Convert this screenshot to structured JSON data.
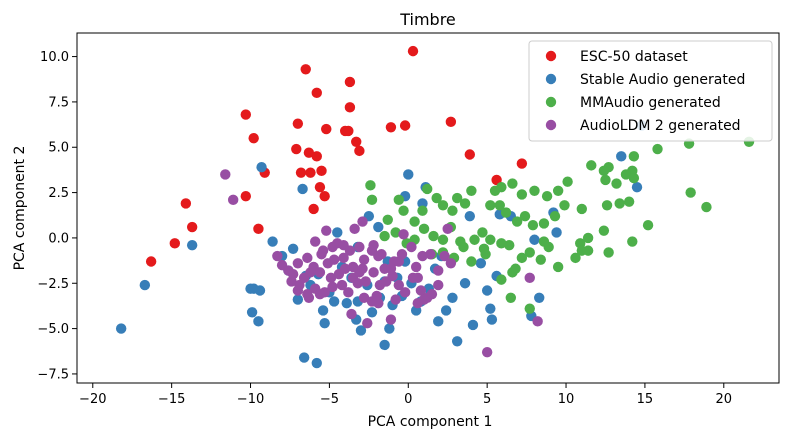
{
  "chart_data": {
    "type": "scatter",
    "title": "Timbre",
    "xlabel": "PCA component 1",
    "ylabel": "PCA component 2",
    "xlim": [
      -21,
      23.5
    ],
    "ylim": [
      -8,
      11.3
    ],
    "xticks": [
      -20,
      -15,
      -10,
      -5,
      0,
      5,
      10,
      15,
      20
    ],
    "yticks": [
      -7.5,
      -5.0,
      -2.5,
      0.0,
      2.5,
      5.0,
      7.5,
      10.0
    ],
    "ytick_labels": [
      "−7.5",
      "−5.0",
      "−2.5",
      "0.0",
      "2.5",
      "5.0",
      "7.5",
      "10.0"
    ],
    "xtick_labels": [
      "−20",
      "−15",
      "−10",
      "−5",
      "0",
      "5",
      "10",
      "15",
      "20"
    ],
    "grid": false,
    "legend_position": "top-right",
    "series": [
      {
        "name": "ESC-50 dataset",
        "color": "#e41a1c",
        "points": [
          [
            0.3,
            10.3
          ],
          [
            -6.5,
            9.3
          ],
          [
            -3.7,
            8.6
          ],
          [
            -5.8,
            8.0
          ],
          [
            -3.7,
            7.2
          ],
          [
            -10.3,
            6.8
          ],
          [
            -7.0,
            6.3
          ],
          [
            -5.2,
            6.0
          ],
          [
            -3.8,
            5.9
          ],
          [
            -3.3,
            5.3
          ],
          [
            -4.0,
            5.9
          ],
          [
            2.7,
            6.4
          ],
          [
            -1.1,
            6.1
          ],
          [
            -0.2,
            6.2
          ],
          [
            -9.8,
            5.5
          ],
          [
            -7.1,
            4.9
          ],
          [
            -6.3,
            4.7
          ],
          [
            -5.8,
            4.5
          ],
          [
            -3.1,
            4.8
          ],
          [
            -5.5,
            3.7
          ],
          [
            -6.8,
            3.6
          ],
          [
            -6.2,
            3.6
          ],
          [
            3.9,
            4.6
          ],
          [
            7.2,
            4.1
          ],
          [
            -5.6,
            2.8
          ],
          [
            -5.3,
            2.3
          ],
          [
            -10.3,
            2.3
          ],
          [
            -9.1,
            3.6
          ],
          [
            -6.0,
            1.6
          ],
          [
            -14.1,
            1.9
          ],
          [
            -13.7,
            0.6
          ],
          [
            -9.5,
            0.5
          ],
          [
            -14.8,
            -0.3
          ],
          [
            -16.3,
            -1.3
          ],
          [
            5.6,
            3.2
          ]
        ]
      },
      {
        "name": "Stable Audio generated",
        "color": "#377eb8",
        "points": [
          [
            -18.2,
            -5.0
          ],
          [
            -16.7,
            -2.6
          ],
          [
            -13.7,
            -0.4
          ],
          [
            -9.3,
            3.9
          ],
          [
            -6.7,
            2.7
          ],
          [
            -10.0,
            -2.8
          ],
          [
            -9.8,
            -2.8
          ],
          [
            -9.9,
            -4.1
          ],
          [
            -9.4,
            -2.9
          ],
          [
            -9.5,
            -4.6
          ],
          [
            -8.6,
            -0.2
          ],
          [
            -8.0,
            -1.0
          ],
          [
            -7.6,
            -1.8
          ],
          [
            -7.3,
            -0.6
          ],
          [
            -7.0,
            -3.4
          ],
          [
            -6.5,
            -2.1
          ],
          [
            -6.2,
            -2.6
          ],
          [
            -5.7,
            -2.0
          ],
          [
            -5.4,
            -4.0
          ],
          [
            -5.3,
            -4.7
          ],
          [
            -5.0,
            -3.0
          ],
          [
            -4.7,
            -3.5
          ],
          [
            -4.2,
            -1.6
          ],
          [
            -3.9,
            -3.6
          ],
          [
            -3.6,
            -2.2
          ],
          [
            -3.3,
            -4.5
          ],
          [
            -3.2,
            -3.5
          ],
          [
            -3.0,
            -5.1
          ],
          [
            -2.6,
            -2.6
          ],
          [
            -2.3,
            -4.1
          ],
          [
            -1.8,
            -3.3
          ],
          [
            -1.5,
            -2.4
          ],
          [
            -1.2,
            -5.0
          ],
          [
            -1.0,
            -3.7
          ],
          [
            -0.7,
            -2.2
          ],
          [
            -0.4,
            -3.2
          ],
          [
            -0.2,
            -1.3
          ],
          [
            0.2,
            -2.5
          ],
          [
            0.5,
            -4.0
          ],
          [
            0.8,
            -3.5
          ],
          [
            1.3,
            -2.8
          ],
          [
            1.9,
            -4.6
          ],
          [
            2.1,
            -1.0
          ],
          [
            2.4,
            -4.0
          ],
          [
            2.8,
            -3.3
          ],
          [
            3.1,
            -5.7
          ],
          [
            3.6,
            -2.5
          ],
          [
            4.1,
            -4.8
          ],
          [
            4.6,
            -1.4
          ],
          [
            5.0,
            -2.9
          ],
          [
            5.2,
            -3.9
          ],
          [
            5.3,
            -4.5
          ],
          [
            5.6,
            -2.1
          ],
          [
            -0.2,
            2.3
          ],
          [
            0.0,
            3.5
          ],
          [
            1.1,
            2.8
          ],
          [
            -2.5,
            1.2
          ],
          [
            -4.5,
            0.3
          ],
          [
            -3.2,
            -0.5
          ],
          [
            -1.9,
            0.6
          ],
          [
            -1.3,
            -1.3
          ],
          [
            0.9,
            1.9
          ],
          [
            1.7,
            -1.7
          ],
          [
            3.9,
            1.2
          ],
          [
            6.5,
            1.2
          ],
          [
            9.4,
            0.3
          ],
          [
            8.3,
            -3.3
          ],
          [
            7.8,
            -4.3
          ],
          [
            14.5,
            2.8
          ],
          [
            14.8,
            6.2
          ],
          [
            13.5,
            4.5
          ],
          [
            -6.6,
            -6.6
          ],
          [
            -5.8,
            -6.9
          ],
          [
            -1.5,
            -5.9
          ],
          [
            8.0,
            -0.1
          ],
          [
            9.2,
            1.4
          ],
          [
            5.8,
            1.3
          ]
        ]
      },
      {
        "name": "MMAudio generated",
        "color": "#4daf4a",
        "points": [
          [
            21.6,
            5.3
          ],
          [
            17.8,
            5.2
          ],
          [
            15.8,
            4.9
          ],
          [
            14.3,
            4.5
          ],
          [
            14.2,
            3.7
          ],
          [
            13.8,
            3.5
          ],
          [
            12.7,
            3.9
          ],
          [
            12.4,
            3.7
          ],
          [
            11.6,
            4.0
          ],
          [
            12.5,
            3.2
          ],
          [
            13.2,
            3.0
          ],
          [
            14.3,
            3.3
          ],
          [
            10.1,
            3.1
          ],
          [
            9.5,
            2.6
          ],
          [
            8.8,
            2.3
          ],
          [
            8.0,
            2.6
          ],
          [
            7.2,
            2.4
          ],
          [
            6.6,
            3.0
          ],
          [
            5.9,
            2.8
          ],
          [
            5.5,
            2.6
          ],
          [
            5.2,
            1.8
          ],
          [
            4.0,
            2.6
          ],
          [
            3.6,
            1.9
          ],
          [
            3.1,
            2.2
          ],
          [
            2.8,
            1.5
          ],
          [
            2.2,
            1.8
          ],
          [
            1.8,
            2.2
          ],
          [
            1.2,
            2.7
          ],
          [
            0.9,
            1.5
          ],
          [
            0.4,
            0.9
          ],
          [
            -0.3,
            1.5
          ],
          [
            -0.6,
            2.1
          ],
          [
            -1.3,
            1.0
          ],
          [
            -2.4,
            2.9
          ],
          [
            -2.3,
            2.1
          ],
          [
            5.8,
            1.8
          ],
          [
            6.2,
            1.4
          ],
          [
            6.9,
            0.9
          ],
          [
            7.4,
            1.2
          ],
          [
            7.9,
            0.7
          ],
          [
            8.6,
            0.8
          ],
          [
            9.3,
            1.2
          ],
          [
            9.9,
            1.8
          ],
          [
            11.0,
            1.6
          ],
          [
            12.6,
            1.8
          ],
          [
            13.4,
            1.9
          ],
          [
            14.0,
            2.0
          ],
          [
            15.2,
            0.7
          ],
          [
            18.9,
            1.7
          ],
          [
            17.9,
            2.5
          ],
          [
            12.4,
            0.4
          ],
          [
            11.4,
            0.0
          ],
          [
            10.9,
            -0.3
          ],
          [
            8.9,
            -0.5
          ],
          [
            8.6,
            -0.2
          ],
          [
            7.7,
            -0.8
          ],
          [
            6.4,
            -0.4
          ],
          [
            5.9,
            -0.3
          ],
          [
            5.2,
            -0.1
          ],
          [
            4.7,
            0.3
          ],
          [
            4.2,
            -0.1
          ],
          [
            3.3,
            -0.2
          ],
          [
            2.7,
            0.6
          ],
          [
            2.2,
            -0.1
          ],
          [
            1.6,
            0.1
          ],
          [
            1.0,
            0.5
          ],
          [
            0.4,
            -0.1
          ],
          [
            -0.1,
            -0.3
          ],
          [
            -0.8,
            0.3
          ],
          [
            -1.5,
            0.1
          ],
          [
            4.9,
            -0.9
          ],
          [
            4.0,
            -1.3
          ],
          [
            3.5,
            -0.5
          ],
          [
            2.9,
            -1.1
          ],
          [
            2.2,
            -0.8
          ],
          [
            1.5,
            -0.9
          ],
          [
            6.6,
            -1.9
          ],
          [
            7.2,
            -1.1
          ],
          [
            8.4,
            -1.2
          ],
          [
            10.6,
            -1.1
          ],
          [
            11.0,
            -0.7
          ],
          [
            6.8,
            -1.7
          ],
          [
            5.9,
            -2.3
          ],
          [
            4.8,
            -0.6
          ],
          [
            6.5,
            -3.3
          ],
          [
            7.7,
            -3.9
          ],
          [
            11.4,
            -0.7
          ],
          [
            9.5,
            -1.6
          ],
          [
            12.7,
            -0.8
          ],
          [
            14.2,
            -0.2
          ]
        ]
      },
      {
        "name": "AudioLDM 2 generated",
        "color": "#984ea3",
        "points": [
          [
            -11.6,
            3.5
          ],
          [
            -11.1,
            2.1
          ],
          [
            -5.2,
            0.4
          ],
          [
            -5.9,
            -0.2
          ],
          [
            -5.5,
            -0.9
          ],
          [
            -4.5,
            -0.3
          ],
          [
            -4.1,
            -0.4
          ],
          [
            -3.7,
            -0.7
          ],
          [
            -3.1,
            -0.5
          ],
          [
            -2.8,
            -1.2
          ],
          [
            -2.2,
            -0.4
          ],
          [
            -1.9,
            -1.0
          ],
          [
            -1.5,
            -1.7
          ],
          [
            -0.9,
            -1.3
          ],
          [
            -0.4,
            -0.9
          ],
          [
            0.2,
            -0.5
          ],
          [
            0.9,
            -1.0
          ],
          [
            1.4,
            -0.9
          ],
          [
            1.9,
            -1.8
          ],
          [
            2.3,
            -1.0
          ],
          [
            2.5,
            0.5
          ],
          [
            -7.0,
            -1.4
          ],
          [
            -6.4,
            -1.1
          ],
          [
            -6.0,
            -1.6
          ],
          [
            -5.6,
            -1.9
          ],
          [
            -5.1,
            -1.4
          ],
          [
            -4.7,
            -1.2
          ],
          [
            -4.4,
            -2.0
          ],
          [
            -4.0,
            -1.7
          ],
          [
            -3.5,
            -2.2
          ],
          [
            -3.1,
            -1.9
          ],
          [
            -2.7,
            -2.4
          ],
          [
            -2.2,
            -1.9
          ],
          [
            -1.8,
            -2.6
          ],
          [
            -1.4,
            -2.4
          ],
          [
            -1.0,
            -2.1
          ],
          [
            -0.6,
            -2.6
          ],
          [
            -0.2,
            -3.0
          ],
          [
            0.3,
            -2.2
          ],
          [
            0.8,
            -2.9
          ],
          [
            1.2,
            -3.3
          ],
          [
            1.5,
            -3.1
          ],
          [
            1.9,
            -2.6
          ],
          [
            -8.3,
            -1.0
          ],
          [
            -8.0,
            -1.5
          ],
          [
            -7.6,
            -1.8
          ],
          [
            -7.4,
            -2.4
          ],
          [
            -7.0,
            -2.9
          ],
          [
            -6.6,
            -2.2
          ],
          [
            -6.4,
            -3.1
          ],
          [
            -5.9,
            -2.8
          ],
          [
            -5.3,
            -3.0
          ],
          [
            -4.8,
            -2.7
          ],
          [
            -4.2,
            -2.6
          ],
          [
            -3.8,
            -3.0
          ],
          [
            -3.2,
            -2.5
          ],
          [
            -2.8,
            -3.3
          ],
          [
            -2.3,
            -3.5
          ],
          [
            -1.9,
            -3.6
          ],
          [
            -2.6,
            -4.7
          ],
          [
            -2.0,
            -3.2
          ],
          [
            -1.1,
            -4.5
          ],
          [
            -3.6,
            -4.2
          ],
          [
            -0.8,
            -3.4
          ],
          [
            -0.6,
            -1.3
          ],
          [
            0.6,
            -3.6
          ],
          [
            1.0,
            -3.4
          ],
          [
            -6.3,
            -3.3
          ],
          [
            -5.6,
            -3.1
          ],
          [
            -4.9,
            -2.2
          ],
          [
            -4.1,
            -1.1
          ],
          [
            -3.5,
            -1.6
          ],
          [
            -2.9,
            -1.7
          ],
          [
            -2.3,
            -0.7
          ],
          [
            -1.7,
            -0.9
          ],
          [
            -5.4,
            -0.7
          ],
          [
            -6.2,
            -1.9
          ],
          [
            -6.9,
            -2.6
          ],
          [
            -7.3,
            -2.0
          ],
          [
            -4.8,
            -0.5
          ],
          [
            -3.4,
            0.5
          ],
          [
            -2.9,
            0.9
          ],
          [
            5.0,
            -6.3
          ],
          [
            8.2,
            -4.6
          ],
          [
            7.7,
            -2.2
          ],
          [
            -1.1,
            -1.7
          ],
          [
            -0.3,
            0.2
          ],
          [
            0.5,
            -1.6
          ],
          [
            2.7,
            -1.4
          ],
          [
            0.6,
            -2.2
          ]
        ]
      }
    ]
  }
}
